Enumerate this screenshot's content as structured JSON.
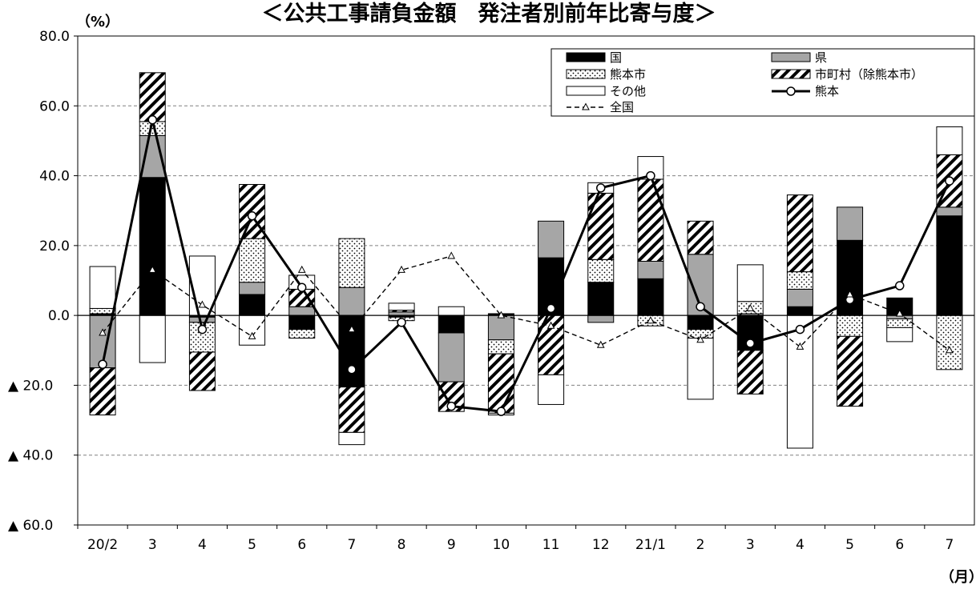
{
  "chart_data": {
    "type": "bar",
    "subtype": "stacked-bar-with-lines",
    "title": "＜公共工事請負金額　発注者別前年比寄与度＞",
    "y_unit": "（%）",
    "x_unit": "（月）",
    "ylim": [
      -60,
      80
    ],
    "y_ticks": [
      {
        "value": 80,
        "label": "80.0"
      },
      {
        "value": 60,
        "label": "60.0"
      },
      {
        "value": 40,
        "label": "40.0"
      },
      {
        "value": 20,
        "label": "20.0"
      },
      {
        "value": 0,
        "label": "0.0"
      },
      {
        "value": -20,
        "label": "▲ 20.0"
      },
      {
        "value": -40,
        "label": "▲ 40.0"
      },
      {
        "value": -60,
        "label": "▲ 60.0"
      }
    ],
    "grid": "dashed horizontal",
    "legend_position": "top-right",
    "categories": [
      "20/2",
      "3",
      "4",
      "5",
      "6",
      "7",
      "8",
      "9",
      "10",
      "11",
      "12",
      "21/1",
      "2",
      "3",
      "4",
      "5",
      "6",
      "7"
    ],
    "stack_series": [
      {
        "name": "国",
        "fill": "#000000",
        "pattern": "solid",
        "values": [
          0.5,
          39.5,
          -0.5,
          6,
          -4,
          -20.5,
          -0.5,
          -5,
          0.5,
          16.5,
          9.5,
          10.5,
          -4,
          -10,
          2.5,
          21.5,
          5,
          28.5
        ]
      },
      {
        "name": "県",
        "fill": "#a6a6a6",
        "pattern": "solid",
        "values": [
          -15,
          12,
          -1.5,
          3.5,
          2.5,
          8,
          1,
          -14,
          -7,
          10.5,
          -2,
          5,
          17.5,
          0.5,
          5,
          9.5,
          -1,
          2.5
        ]
      },
      {
        "name": "熊本市",
        "fill": "#ffffff",
        "pattern": "dots",
        "values": [
          1.5,
          4,
          -8.5,
          12.5,
          -2.5,
          14,
          -1,
          0,
          -4,
          0,
          6.5,
          -3,
          -2.5,
          3.5,
          5,
          -6,
          -2.5,
          -15.5
        ]
      },
      {
        "name": "市町村（除熊本市）",
        "fill": "#ffffff",
        "pattern": "diagonal",
        "values": [
          -13.5,
          14,
          -11,
          15.5,
          5,
          -13,
          0.5,
          -8.5,
          -17,
          -17,
          19,
          23.5,
          9.5,
          -12.5,
          22,
          -20,
          0,
          15
        ]
      },
      {
        "name": "その他",
        "fill": "#ffffff",
        "pattern": "solid",
        "values": [
          12,
          -13.5,
          17,
          -8.5,
          4,
          -3.5,
          2,
          2.5,
          -0.5,
          -8.5,
          3,
          6.5,
          -17.5,
          10.5,
          -38,
          0,
          -4,
          8
        ]
      }
    ],
    "line_series": [
      {
        "name": "熊本",
        "style": "solid",
        "marker": "circle",
        "values": [
          -14,
          56,
          -4,
          28.5,
          8,
          -15.5,
          -2,
          -26,
          -27.5,
          2,
          36.5,
          40,
          2.5,
          -8,
          -4,
          4.5,
          8.5,
          38.5
        ]
      },
      {
        "name": "全国",
        "style": "dashed",
        "marker": "triangle",
        "values": [
          -5,
          13,
          3,
          -6,
          13,
          -4,
          13,
          17,
          0,
          -3,
          -8.5,
          -1.5,
          -7,
          2,
          -9,
          6,
          0.5,
          -10
        ]
      }
    ]
  }
}
